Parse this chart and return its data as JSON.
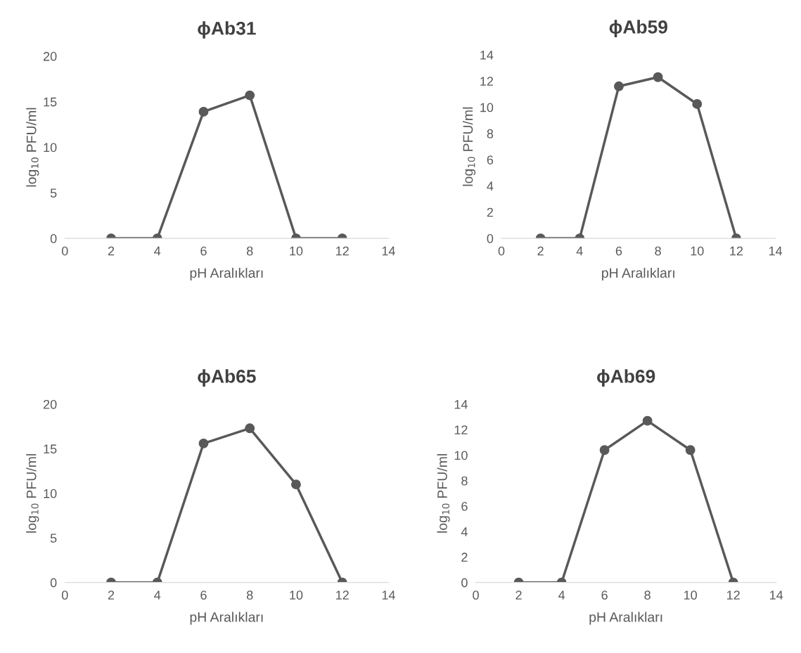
{
  "chart_data": [
    {
      "type": "line",
      "title": "ϕAb31",
      "xlabel": "pH Aralıkları",
      "ylabel": "log$_{10}$ PFU/ml",
      "x": [
        2,
        4,
        6,
        8,
        10,
        12
      ],
      "values": [
        0,
        0,
        13.9,
        15.7,
        0,
        0
      ],
      "color": "#595959",
      "marker": "circle",
      "xlim": [
        0,
        14
      ],
      "xticks": [
        0,
        2,
        4,
        6,
        8,
        10,
        12,
        14
      ],
      "ylim": [
        0,
        20
      ],
      "yticks": [
        0,
        5,
        10,
        15,
        20
      ]
    },
    {
      "type": "line",
      "title": "ϕAb59",
      "xlabel": "pH Aralıkları",
      "ylabel": "log$_{10}$ PFU/ml",
      "x": [
        2,
        4,
        6,
        8,
        10,
        12
      ],
      "values": [
        0,
        0,
        11.6,
        12.3,
        10.25,
        0
      ],
      "color": "#595959",
      "marker": "circle",
      "xlim": [
        0,
        14
      ],
      "xticks": [
        0,
        2,
        4,
        6,
        8,
        10,
        12,
        14
      ],
      "ylim": [
        0,
        14
      ],
      "yticks": [
        0,
        2,
        4,
        6,
        8,
        10,
        12,
        14
      ]
    },
    {
      "type": "line",
      "title": "ϕAb65",
      "xlabel": "pH Aralıkları",
      "ylabel": "log$_{10}$ PFU/ml",
      "x": [
        2,
        4,
        6,
        8,
        10,
        12
      ],
      "values": [
        0,
        0,
        15.6,
        17.3,
        11.0,
        0
      ],
      "color": "#595959",
      "marker": "circle",
      "xlim": [
        0,
        14
      ],
      "xticks": [
        0,
        2,
        4,
        6,
        8,
        10,
        12,
        14
      ],
      "ylim": [
        0,
        20
      ],
      "yticks": [
        0,
        5,
        10,
        15,
        20
      ]
    },
    {
      "type": "line",
      "title": "ϕAb69",
      "xlabel": "pH Aralıkları",
      "ylabel": "log$_{10}$ PFU/ml",
      "x": [
        2,
        4,
        6,
        8,
        10,
        12
      ],
      "values": [
        0,
        0,
        10.4,
        12.7,
        10.4,
        0
      ],
      "color": "#595959",
      "marker": "circle",
      "xlim": [
        0,
        14
      ],
      "xticks": [
        0,
        2,
        4,
        6,
        8,
        10,
        12,
        14
      ],
      "ylim": [
        0,
        14
      ],
      "yticks": [
        0,
        2,
        4,
        6,
        8,
        10,
        12,
        14
      ]
    }
  ]
}
